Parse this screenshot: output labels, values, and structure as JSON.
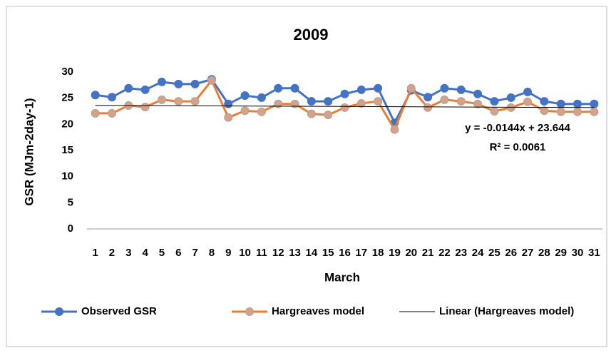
{
  "chart_data": {
    "type": "line",
    "title": "2009",
    "x_label": "March",
    "y_label": "GSR (MJm-2day-1)",
    "x": [
      1,
      2,
      3,
      4,
      5,
      6,
      7,
      8,
      9,
      10,
      11,
      12,
      13,
      14,
      15,
      16,
      17,
      18,
      19,
      20,
      21,
      22,
      23,
      24,
      25,
      26,
      27,
      28,
      29,
      30,
      31
    ],
    "xlim": [
      0.5,
      31.5
    ],
    "ylim": [
      0,
      30
    ],
    "yticks": [
      0,
      5,
      10,
      15,
      20,
      25,
      30
    ],
    "grid": false,
    "legend": "bottom",
    "series": [
      {
        "name": "Observed GSR",
        "color": "#4472c4",
        "marker_fill": "#4472c4",
        "values": [
          25.6,
          25.2,
          26.9,
          26.6,
          28.1,
          27.7,
          27.7,
          28.6,
          23.9,
          25.5,
          25.1,
          26.9,
          26.9,
          24.4,
          24.4,
          25.8,
          26.6,
          26.9,
          20.3,
          26.5,
          25.2,
          26.9,
          26.6,
          25.8,
          24.4,
          25.1,
          26.2,
          24.4,
          23.9,
          23.9,
          23.9
        ]
      },
      {
        "name": "Hargreaves model",
        "color": "#ed7d31",
        "marker_fill": "#d9a083",
        "values": [
          22.1,
          22.1,
          23.6,
          23.3,
          24.7,
          24.4,
          24.4,
          28.4,
          21.3,
          22.6,
          22.4,
          23.9,
          23.9,
          22.0,
          21.8,
          23.2,
          24.0,
          24.4,
          19.0,
          26.9,
          23.2,
          24.7,
          24.4,
          23.9,
          22.5,
          23.2,
          24.3,
          22.6,
          22.4,
          22.4,
          22.4
        ]
      }
    ],
    "trendline": {
      "name": "Linear (Hargreaves model)",
      "color": "#000000",
      "slope": -0.0144,
      "intercept": 23.644,
      "equation": "y = -0.0144x + 23.644",
      "r_squared_label": "R² = 0.0061"
    }
  }
}
